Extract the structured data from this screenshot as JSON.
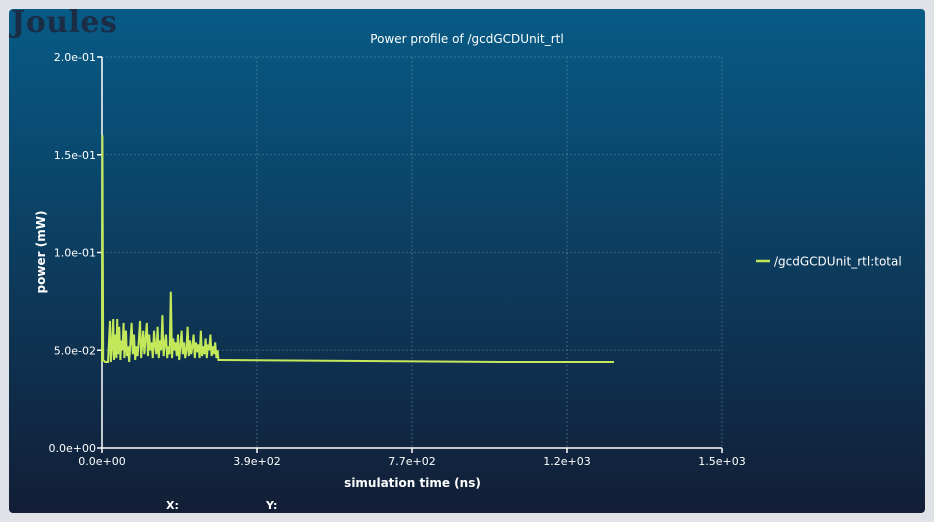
{
  "app": {
    "brand": "Joules"
  },
  "chart_data": {
    "type": "line",
    "title": "Power profile of /gcdGCDUnit_rtl",
    "xlabel": "simulation time (ns)",
    "ylabel": "power (mW)",
    "xlim": [
      0,
      1500
    ],
    "ylim": [
      0,
      0.2
    ],
    "x_ticks": [
      {
        "value": 0,
        "label": "0.0e+00"
      },
      {
        "value": 387.5,
        "label": "3.9e+02"
      },
      {
        "value": 775,
        "label": "7.7e+02"
      },
      {
        "value": 1162.5,
        "label": "1.2e+03"
      },
      {
        "value": 1550,
        "label": "1.5e+03"
      }
    ],
    "y_ticks": [
      {
        "value": 0,
        "label": "0.0e+00"
      },
      {
        "value": 0.05,
        "label": "5.0e-02"
      },
      {
        "value": 0.1,
        "label": "1.0e-01"
      },
      {
        "value": 0.15,
        "label": "1.5e-01"
      },
      {
        "value": 0.2,
        "label": "2.0e-01"
      }
    ],
    "grid": true,
    "legend_position": "right",
    "series": [
      {
        "name": "/gcdGCDUnit_rtl:total",
        "color": "#c3e85a",
        "x": [
          0,
          1,
          3,
          8,
          15,
          20,
          22,
          25,
          28,
          30,
          33,
          36,
          38,
          40,
          43,
          46,
          48,
          51,
          54,
          56,
          58,
          60,
          62,
          65,
          68,
          71,
          74,
          77,
          80,
          83,
          86,
          89,
          92,
          95,
          98,
          100,
          103,
          106,
          109,
          112,
          115,
          118,
          121,
          124,
          127,
          130,
          133,
          136,
          139,
          142,
          145,
          148,
          151,
          154,
          157,
          160,
          163,
          166,
          169,
          172,
          175,
          178,
          181,
          184,
          187,
          190,
          193,
          196,
          199,
          202,
          205,
          208,
          211,
          214,
          217,
          220,
          223,
          226,
          229,
          232,
          235,
          238,
          241,
          244,
          247,
          250,
          253,
          256,
          259,
          262,
          265,
          268,
          271,
          274,
          277,
          280,
          283,
          286,
          289,
          291,
          295,
          1000,
          1280
        ],
        "y": [
          0.044,
          0.16,
          0.045,
          0.044,
          0.044,
          0.065,
          0.044,
          0.052,
          0.066,
          0.045,
          0.058,
          0.046,
          0.066,
          0.048,
          0.062,
          0.045,
          0.055,
          0.05,
          0.064,
          0.046,
          0.058,
          0.06,
          0.047,
          0.052,
          0.044,
          0.054,
          0.064,
          0.048,
          0.058,
          0.045,
          0.052,
          0.047,
          0.055,
          0.065,
          0.046,
          0.052,
          0.06,
          0.048,
          0.056,
          0.064,
          0.047,
          0.058,
          0.05,
          0.054,
          0.046,
          0.06,
          0.052,
          0.048,
          0.062,
          0.046,
          0.055,
          0.05,
          0.068,
          0.047,
          0.053,
          0.058,
          0.046,
          0.052,
          0.048,
          0.08,
          0.046,
          0.056,
          0.05,
          0.054,
          0.047,
          0.058,
          0.045,
          0.052,
          0.06,
          0.048,
          0.054,
          0.046,
          0.05,
          0.062,
          0.047,
          0.055,
          0.048,
          0.052,
          0.058,
          0.046,
          0.054,
          0.049,
          0.053,
          0.046,
          0.06,
          0.047,
          0.052,
          0.048,
          0.056,
          0.046,
          0.053,
          0.05,
          0.058,
          0.047,
          0.052,
          0.048,
          0.054,
          0.046,
          0.05,
          0.045,
          0.045,
          0.044,
          0.044
        ]
      }
    ]
  },
  "readout": {
    "x_label": "X:",
    "y_label": "Y:"
  }
}
